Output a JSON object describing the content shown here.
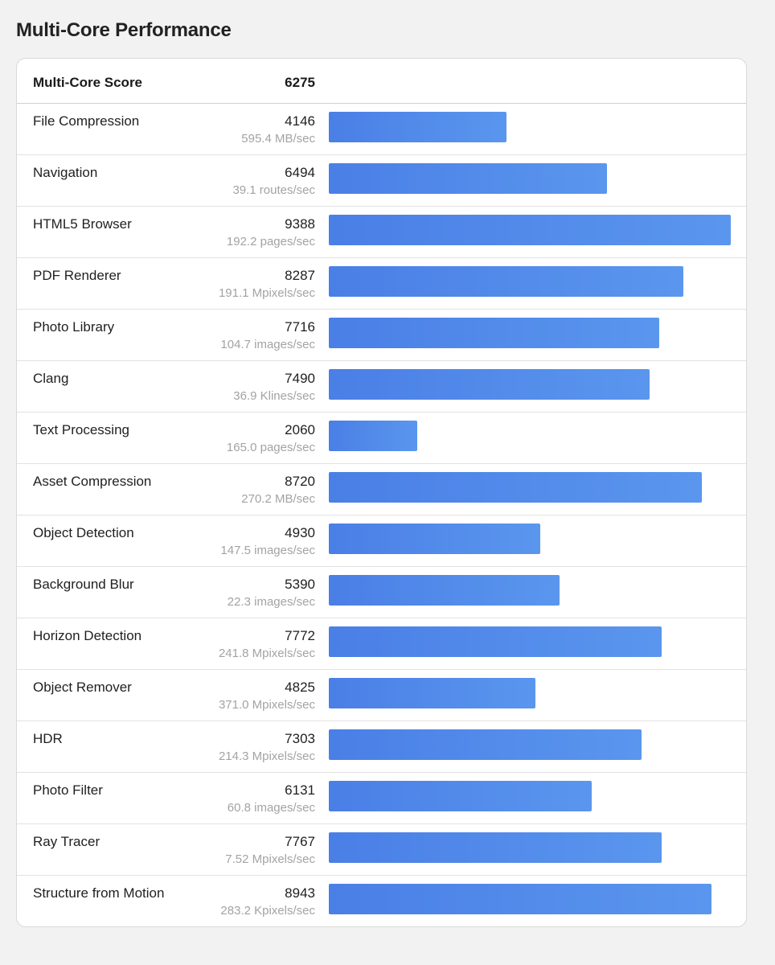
{
  "header": {
    "title": "Multi-Core Performance"
  },
  "score": {
    "label": "Multi-Core Score",
    "value": "6275"
  },
  "bar_color_start": "#4a7fe6",
  "bar_color_end": "#5a96ee",
  "max_score": 9388,
  "benchmarks": [
    {
      "name": "File Compression",
      "score": 4146,
      "unit": "595.4 MB/sec"
    },
    {
      "name": "Navigation",
      "score": 6494,
      "unit": "39.1 routes/sec"
    },
    {
      "name": "HTML5 Browser",
      "score": 9388,
      "unit": "192.2 pages/sec"
    },
    {
      "name": "PDF Renderer",
      "score": 8287,
      "unit": "191.1 Mpixels/sec"
    },
    {
      "name": "Photo Library",
      "score": 7716,
      "unit": "104.7 images/sec"
    },
    {
      "name": "Clang",
      "score": 7490,
      "unit": "36.9 Klines/sec"
    },
    {
      "name": "Text Processing",
      "score": 2060,
      "unit": "165.0 pages/sec"
    },
    {
      "name": "Asset Compression",
      "score": 8720,
      "unit": "270.2 MB/sec"
    },
    {
      "name": "Object Detection",
      "score": 4930,
      "unit": "147.5 images/sec"
    },
    {
      "name": "Background Blur",
      "score": 5390,
      "unit": "22.3 images/sec"
    },
    {
      "name": "Horizon Detection",
      "score": 7772,
      "unit": "241.8 Mpixels/sec"
    },
    {
      "name": "Object Remover",
      "score": 4825,
      "unit": "371.0 Mpixels/sec"
    },
    {
      "name": "HDR",
      "score": 7303,
      "unit": "214.3 Mpixels/sec"
    },
    {
      "name": "Photo Filter",
      "score": 6131,
      "unit": "60.8 images/sec"
    },
    {
      "name": "Ray Tracer",
      "score": 7767,
      "unit": "7.52 Mpixels/sec"
    },
    {
      "name": "Structure from Motion",
      "score": 8943,
      "unit": "283.2 Kpixels/sec"
    }
  ]
}
